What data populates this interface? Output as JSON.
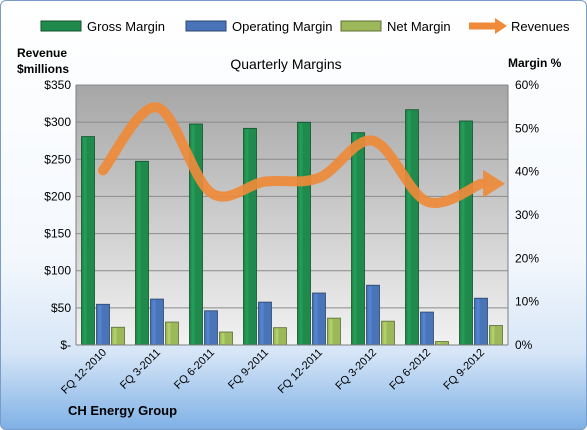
{
  "chart_data": {
    "type": "bar",
    "title": "Quarterly Margins",
    "categories": [
      "FQ 12-2010",
      "FQ 3-2011",
      "FQ 6-2011",
      "FQ 9-2011",
      "FQ 12-2011",
      "FQ 3-2012",
      "FQ 6-2012",
      "FQ 9-2012"
    ],
    "series": [
      {
        "name": "Gross Margin",
        "axis": "right",
        "color": "#1f8a4c",
        "values": [
          48.1,
          42.4,
          51.0,
          50.0,
          51.4,
          49.0,
          54.3,
          51.7
        ]
      },
      {
        "name": "Operating Margin",
        "axis": "right",
        "color": "#4a74b8",
        "values": [
          9.4,
          10.6,
          7.9,
          9.9,
          12.0,
          13.8,
          7.6,
          10.8
        ]
      },
      {
        "name": "Net Margin",
        "axis": "right",
        "color": "#9cb85a",
        "values": [
          4.1,
          5.3,
          3.0,
          4.0,
          6.2,
          5.5,
          0.8,
          4.5
        ]
      },
      {
        "name": "Revenues",
        "axis": "left",
        "type": "line",
        "color": "#ee8a3a",
        "values": [
          235,
          320,
          205,
          220,
          225,
          275,
          193,
          217
        ]
      }
    ],
    "ylabel_left": "Revenue $millions",
    "ylabel_right": "Margin %",
    "ylim_left": [
      0,
      350
    ],
    "ylim_right": [
      0,
      60
    ],
    "yticks_left": [
      "$-",
      "$50",
      "$100",
      "$150",
      "$200",
      "$250",
      "$300",
      "$350"
    ],
    "yticks_right": [
      "0%",
      "10%",
      "20%",
      "30%",
      "40%",
      "50%",
      "60%"
    ],
    "grid": true,
    "legend": "top"
  },
  "footer": {
    "company": "CH Energy Group"
  }
}
